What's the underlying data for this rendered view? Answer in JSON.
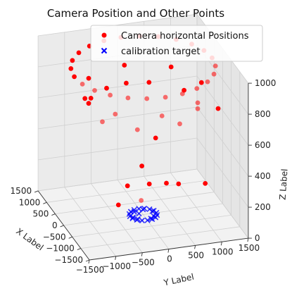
{
  "chart_data": {
    "type": "scatter",
    "title": "Camera Position and Other Points",
    "xlabel": "X Label",
    "ylabel": "Y Label",
    "zlabel": "Z Label",
    "xlim": [
      -1500,
      1500
    ],
    "ylim": [
      -1500,
      1500
    ],
    "zlim": [
      0,
      1000
    ],
    "x_ticks": [
      "−1500",
      "−1000",
      "−500",
      "0",
      "500",
      "1000",
      "1500"
    ],
    "y_ticks": [
      "−1500",
      "−1000",
      "−500",
      "0",
      "500",
      "1000",
      "1500"
    ],
    "z_ticks": [
      "0",
      "200",
      "400",
      "600",
      "800",
      "1000"
    ],
    "grid": true,
    "legend_position": "top-right",
    "series": [
      {
        "name": "Camera horizontal Positions",
        "marker": "circle",
        "color": "#ff0000",
        "points": [
          [
            0,
            1300,
            950
          ],
          [
            335,
            1256,
            950
          ],
          [
            650,
            1126,
            950
          ],
          [
            919,
            919,
            950
          ],
          [
            1126,
            650,
            950
          ],
          [
            1256,
            336,
            950
          ],
          [
            1300,
            0,
            950
          ],
          [
            1256,
            -336,
            950
          ],
          [
            1126,
            -650,
            950
          ],
          [
            919,
            -919,
            950
          ],
          [
            650,
            -1126,
            950
          ],
          [
            336,
            -1256,
            950
          ],
          [
            0,
            -1300,
            950
          ],
          [
            -336,
            -1256,
            950
          ],
          [
            -650,
            -1126,
            950
          ],
          [
            -919,
            -919,
            950
          ],
          [
            -1126,
            -650,
            950
          ],
          [
            -1256,
            -336,
            950
          ],
          [
            -1300,
            0,
            950
          ],
          [
            -1256,
            336,
            950
          ],
          [
            -1126,
            650,
            950
          ],
          [
            -919,
            919,
            950
          ],
          [
            -650,
            1126,
            950
          ],
          [
            -336,
            1256,
            950
          ],
          [
            0,
            1100,
            800
          ],
          [
            778,
            778,
            800
          ],
          [
            1100,
            0,
            800
          ],
          [
            778,
            -778,
            800
          ],
          [
            0,
            -1100,
            800
          ],
          [
            -778,
            -778,
            800
          ],
          [
            -1100,
            0,
            800
          ],
          [
            -778,
            778,
            800
          ],
          [
            400,
            900,
            700
          ],
          [
            900,
            400,
            700
          ],
          [
            900,
            -400,
            700
          ],
          [
            400,
            -900,
            700
          ],
          [
            -400,
            -900,
            700
          ],
          [
            -900,
            -400,
            700
          ],
          [
            -900,
            400,
            700
          ],
          [
            -400,
            900,
            700
          ],
          [
            1300,
            100,
            650
          ],
          [
            -200,
            1350,
            650
          ],
          [
            1200,
            -600,
            600
          ],
          [
            200,
            300,
            450
          ],
          [
            -50,
            100,
            200
          ],
          [
            300,
            -200,
            150
          ],
          [
            -350,
            -150,
            150
          ],
          [
            400,
            1300,
            80
          ],
          [
            500,
            600,
            100
          ],
          [
            100,
            700,
            150
          ],
          [
            -100,
            -500,
            100
          ],
          [
            700,
            200,
            200
          ]
        ]
      },
      {
        "name": "calibration target",
        "marker": "x",
        "color": "#0000ff",
        "points": [
          [
            -250,
            0,
            0
          ],
          [
            -231,
            96,
            0
          ],
          [
            -177,
            177,
            0
          ],
          [
            -96,
            231,
            0
          ],
          [
            0,
            250,
            0
          ],
          [
            96,
            231,
            0
          ],
          [
            177,
            177,
            0
          ],
          [
            231,
            96,
            0
          ],
          [
            250,
            0,
            0
          ],
          [
            231,
            -96,
            0
          ],
          [
            177,
            -177,
            0
          ],
          [
            96,
            -231,
            0
          ],
          [
            0,
            -250,
            0
          ],
          [
            -96,
            -231,
            0
          ],
          [
            -177,
            -177,
            0
          ],
          [
            -231,
            -96,
            0
          ],
          [
            -200,
            80,
            0
          ],
          [
            -150,
            -150,
            0
          ],
          [
            80,
            200,
            0
          ],
          [
            150,
            -120,
            0
          ],
          [
            200,
            60,
            0
          ],
          [
            -60,
            -210,
            0
          ],
          [
            -120,
            160,
            0
          ],
          [
            60,
            -60,
            0
          ]
        ]
      }
    ]
  }
}
